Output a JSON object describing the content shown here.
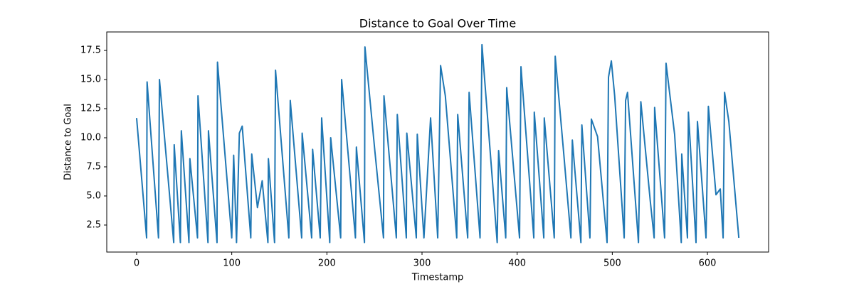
{
  "chart_data": {
    "type": "line",
    "title": "Distance to Goal Over Time",
    "x_label": "Timestamp",
    "y_label": "Distance to Goal",
    "x": [
      0,
      10.5,
      11,
      23,
      24,
      39,
      39.5,
      46,
      47,
      55,
      56,
      64,
      64.5,
      75,
      75.5,
      84.5,
      85,
      100,
      102,
      105,
      108,
      111,
      120,
      121,
      127,
      132,
      138,
      138.5,
      145,
      146,
      160,
      161.5,
      173.5,
      174,
      184,
      185,
      193,
      194.5,
      203,
      204,
      214.5,
      215.5,
      230,
      231,
      239.5,
      240,
      250.5,
      259.5,
      260,
      273,
      274,
      283.5,
      284,
      294,
      295,
      302,
      309,
      316.5,
      319.5,
      324.5,
      336.5,
      337.5,
      348,
      349.5,
      361,
      363,
      379,
      380.5,
      388,
      389,
      402.5,
      404,
      417.5,
      418,
      428,
      428.5,
      439,
      440,
      449,
      456.5,
      458,
      467,
      468,
      476.5,
      478,
      484.5,
      494.5,
      496,
      499,
      502.5,
      512.5,
      514,
      516,
      527.5,
      530,
      540,
      544,
      544.5,
      555,
      556.5,
      565.5,
      572.5,
      573,
      579,
      580,
      588,
      589.5,
      598.5,
      601,
      609,
      613.5,
      616.5,
      618,
      622.5,
      633
    ],
    "series": [
      {
        "name": "Distance to Goal",
        "color": "#1f77b4",
        "values": [
          11.7,
          1.4,
          14.8,
          1.4,
          15.0,
          1.0,
          9.4,
          1.0,
          10.6,
          1.0,
          8.2,
          1.4,
          13.6,
          1.0,
          10.6,
          1.0,
          16.5,
          1.4,
          8.5,
          1.0,
          10.4,
          11.0,
          1.4,
          8.6,
          4.0,
          6.3,
          1.0,
          8.2,
          1.0,
          15.8,
          1.4,
          13.2,
          1.4,
          10.4,
          1.4,
          9.0,
          1.4,
          11.7,
          1.0,
          10.0,
          1.4,
          15.0,
          1.4,
          9.2,
          1.0,
          17.8,
          8.8,
          1.4,
          13.6,
          1.4,
          12.0,
          1.4,
          10.4,
          1.4,
          10.3,
          1.4,
          11.7,
          1.4,
          16.2,
          13.6,
          1.4,
          12.0,
          1.4,
          13.9,
          1.4,
          18.0,
          1.0,
          8.9,
          1.4,
          14.3,
          1.4,
          16.1,
          1.4,
          12.2,
          1.4,
          11.7,
          1.4,
          17.0,
          8.6,
          1.4,
          9.8,
          1.0,
          11.1,
          1.4,
          11.6,
          10.1,
          1.0,
          15.2,
          16.6,
          13.6,
          1.4,
          13.2,
          13.9,
          1.0,
          13.1,
          4.5,
          1.4,
          12.6,
          1.4,
          16.4,
          10.3,
          1.0,
          8.6,
          1.4,
          12.2,
          1.0,
          11.4,
          1.4,
          12.7,
          5.1,
          5.6,
          1.4,
          13.9,
          11.4,
          1.4
        ]
      }
    ],
    "xlim": [
      -31.4,
      664.3
    ],
    "ylim": [
      0.18,
      19.09
    ],
    "xticks": [
      0,
      100,
      200,
      300,
      400,
      500,
      600
    ],
    "yticks": [
      2.5,
      {
        "value": 5,
        "label": "5.0"
      },
      7.5,
      {
        "value": 10,
        "label": "10.0"
      },
      12.5,
      {
        "value": 15,
        "label": "15.0"
      },
      17.5
    ],
    "grid": false
  }
}
